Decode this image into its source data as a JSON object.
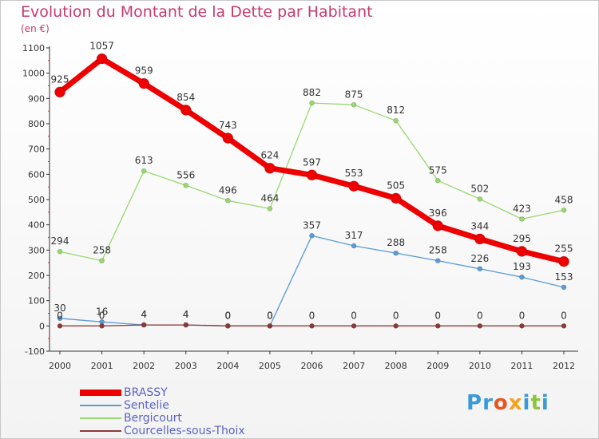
{
  "title": "Evolution du Montant de la Dette par Habitant",
  "unit_label": "(en €)",
  "logo": {
    "text": "Proxiti",
    "letters": [
      "P",
      "r",
      "o",
      "x",
      "i",
      "t",
      "i"
    ],
    "colors": [
      "#3a9ad9",
      "#3a9ad9",
      "#e8561f",
      "#f3a21e",
      "#3a9ad9",
      "#8cc63f",
      "#3a9ad9"
    ]
  },
  "chart_data": {
    "type": "line",
    "title": "Evolution du Montant de la Dette par Habitant",
    "ylabel": "(en €)",
    "xlabel": "",
    "x": [
      "2000",
      "2001",
      "2002",
      "2003",
      "2004",
      "2005",
      "2006",
      "2007",
      "2008",
      "2009",
      "2010",
      "2011",
      "2012"
    ],
    "ylim": [
      -100,
      1100
    ],
    "yticks": [
      -100,
      0,
      100,
      200,
      300,
      400,
      500,
      600,
      700,
      800,
      900,
      1000,
      1100
    ],
    "grid": false,
    "legend": "bottom-left",
    "series": [
      {
        "name": "BRASSY",
        "color": "#ee0000",
        "values": [
          925,
          1057,
          959,
          854,
          743,
          624,
          597,
          553,
          505,
          396,
          344,
          295,
          255
        ]
      },
      {
        "name": "Sentelie",
        "color": "#5b9bd5",
        "values": [
          30,
          16,
          4,
          4,
          0,
          0,
          357,
          317,
          288,
          258,
          226,
          193,
          153
        ]
      },
      {
        "name": "Bergicourt",
        "color": "#98d870",
        "values": [
          294,
          258,
          613,
          556,
          496,
          464,
          882,
          875,
          812,
          575,
          502,
          423,
          458
        ]
      },
      {
        "name": "Courcelles-sous-Thoix",
        "color": "#8b3a3a",
        "values": [
          0,
          0,
          4,
          4,
          0,
          0,
          0,
          0,
          0,
          0,
          0,
          0,
          0
        ]
      }
    ]
  }
}
